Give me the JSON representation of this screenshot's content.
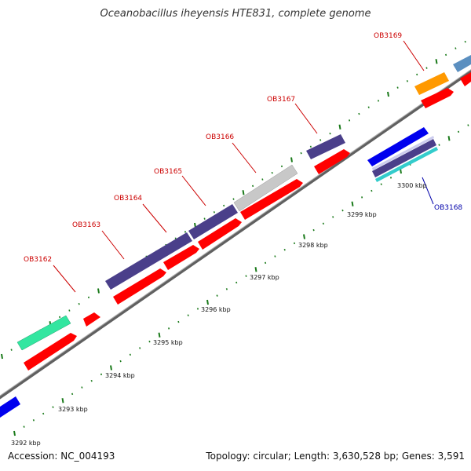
{
  "title": "Oceanobacillus iheyensis HTE831, complete genome",
  "footer": {
    "accession": "Accession: NC_004193",
    "topology": "Topology: circular; Length: 3,630,528 bp; Genes: 3,591"
  },
  "colors": {
    "backbone": "#808080",
    "tick": "#1a7a1a",
    "cds": "#ff0000",
    "label_red": "#cc0000",
    "label_blue": "#0000aa",
    "gene_navy": "#4a3f8a",
    "gene_gray": "#c8c8c8",
    "gene_green": "#33e6a0",
    "gene_orange": "#ff9900",
    "gene_blue": "#0000ee",
    "gene_steel": "#5b8fc0",
    "gene_cyan": "#33cccc"
  },
  "kbp_labels": [
    "3292 kbp",
    "3293 kbp",
    "3294 kbp",
    "3295 kbp",
    "3296 kbp",
    "3297 kbp",
    "3298 kbp",
    "3299 kbp",
    "3300 kbp"
  ],
  "gene_labels": [
    {
      "id": "ob3162",
      "text": "OB3162",
      "color": "red"
    },
    {
      "id": "ob3163",
      "text": "OB3163",
      "color": "red"
    },
    {
      "id": "ob3164",
      "text": "OB3164",
      "color": "red"
    },
    {
      "id": "ob3165",
      "text": "OB3165",
      "color": "red"
    },
    {
      "id": "ob3166",
      "text": "OB3166",
      "color": "red"
    },
    {
      "id": "ob3167",
      "text": "OB3167",
      "color": "red"
    },
    {
      "id": "ob3168",
      "text": "OB3168",
      "color": "blue"
    },
    {
      "id": "ob3169",
      "text": "OB3169",
      "color": "red"
    }
  ]
}
